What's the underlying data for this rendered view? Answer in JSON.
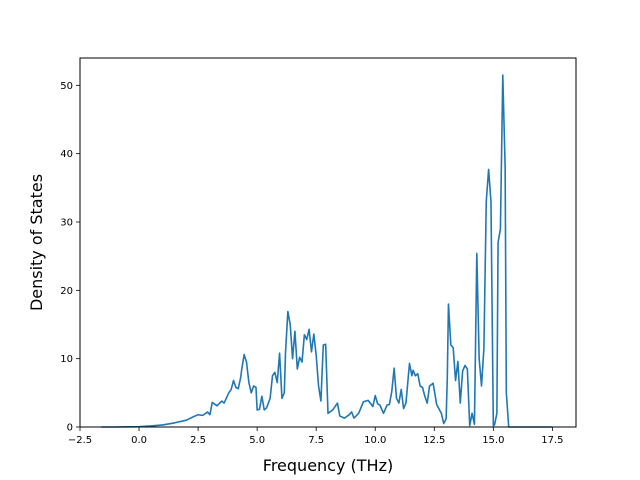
{
  "chart_data": {
    "type": "line",
    "title": "",
    "xlabel": "Frequency (THz)",
    "ylabel": "Density of States",
    "xlim": [
      -2.5,
      18.5
    ],
    "ylim": [
      0,
      54
    ],
    "grid": false,
    "legend": "none",
    "x_ticks": [
      -2.5,
      0.0,
      2.5,
      5.0,
      7.5,
      10.0,
      12.5,
      15.0,
      17.5
    ],
    "x_tick_labels": [
      "−2.5",
      "0.0",
      "2.5",
      "5.0",
      "7.5",
      "10.0",
      "12.5",
      "15.0",
      "17.5"
    ],
    "y_ticks": [
      0,
      10,
      20,
      30,
      40,
      50
    ],
    "y_tick_labels": [
      "0",
      "10",
      "20",
      "30",
      "40",
      "50"
    ],
    "series": [
      {
        "color": "#1f77b4",
        "x": [
          -1.6,
          -1.0,
          0.0,
          0.5,
          1.0,
          1.5,
          2.0,
          2.3,
          2.5,
          2.7,
          2.9,
          3.0,
          3.1,
          3.3,
          3.5,
          3.6,
          3.8,
          3.9,
          4.0,
          4.1,
          4.2,
          4.3,
          4.35,
          4.45,
          4.55,
          4.65,
          4.75,
          4.85,
          4.95,
          5.0,
          5.1,
          5.2,
          5.3,
          5.4,
          5.55,
          5.65,
          5.75,
          5.85,
          5.95,
          6.05,
          6.15,
          6.2,
          6.3,
          6.4,
          6.5,
          6.6,
          6.7,
          6.8,
          6.9,
          7.0,
          7.1,
          7.2,
          7.3,
          7.4,
          7.5,
          7.6,
          7.7,
          7.8,
          7.9,
          8.0,
          8.2,
          8.4,
          8.5,
          8.7,
          8.9,
          9.0,
          9.1,
          9.3,
          9.5,
          9.7,
          9.9,
          10.0,
          10.1,
          10.2,
          10.35,
          10.5,
          10.6,
          10.7,
          10.8,
          10.9,
          11.0,
          11.1,
          11.2,
          11.3,
          11.45,
          11.55,
          11.6,
          11.7,
          11.8,
          11.9,
          12.0,
          12.1,
          12.2,
          12.3,
          12.45,
          12.6,
          12.8,
          12.9,
          13.0,
          13.05,
          13.1,
          13.2,
          13.3,
          13.4,
          13.5,
          13.6,
          13.7,
          13.8,
          13.9,
          14.0,
          14.1,
          14.2,
          14.3,
          14.4,
          14.5,
          14.6,
          14.7,
          14.8,
          14.9,
          15.0,
          15.05,
          15.15,
          15.2,
          15.3,
          15.4,
          15.5,
          15.55,
          15.65,
          15.75,
          15.85,
          15.9,
          15.95,
          16.0,
          16.1,
          17.5
        ],
        "y": [
          0,
          0,
          0.05,
          0.15,
          0.3,
          0.6,
          1.0,
          1.5,
          1.8,
          1.7,
          2.2,
          1.8,
          3.6,
          3.1,
          3.8,
          3.5,
          5.0,
          5.5,
          6.8,
          5.8,
          5.6,
          7.2,
          8.5,
          10.6,
          9.5,
          6.5,
          5.0,
          6.0,
          5.8,
          2.5,
          2.6,
          4.5,
          2.5,
          2.8,
          4.2,
          7.5,
          8.0,
          6.5,
          10.8,
          4.2,
          5.0,
          10.8,
          16.9,
          15.0,
          10.0,
          14.0,
          8.5,
          10.2,
          9.5,
          13.5,
          12.8,
          14.3,
          11.0,
          13.6,
          10.5,
          6.0,
          3.8,
          12.0,
          12.1,
          2.0,
          2.5,
          3.5,
          1.6,
          1.3,
          1.8,
          2.2,
          1.3,
          2.0,
          3.7,
          3.9,
          3.0,
          4.6,
          3.4,
          3.2,
          2.0,
          3.2,
          3.3,
          5.2,
          8.6,
          4.2,
          3.5,
          5.5,
          2.7,
          3.5,
          9.3,
          7.5,
          8.3,
          7.5,
          7.8,
          6.0,
          5.8,
          4.5,
          3.5,
          6.0,
          6.4,
          3.3,
          2.0,
          0.5,
          1.2,
          7.0,
          18.0,
          12.0,
          11.6,
          6.8,
          9.6,
          3.5,
          8.2,
          9.0,
          8.5,
          0.2,
          2.0,
          0.4,
          25.4,
          10.0,
          6.0,
          11.5,
          33.0,
          37.7,
          33.0,
          0.2,
          0.3,
          2.0,
          27.0,
          29.0,
          51.5,
          38.0,
          5.0,
          0,
          0,
          0,
          0,
          0,
          0,
          0,
          0
        ]
      }
    ]
  }
}
